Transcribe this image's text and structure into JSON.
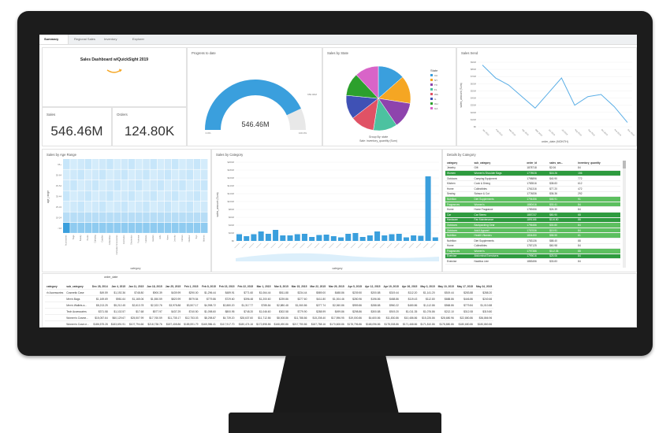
{
  "tabs": [
    {
      "label": "Summary",
      "active": true
    },
    {
      "label": "Regional Sales",
      "active": false
    },
    {
      "label": "Inventory",
      "active": false
    },
    {
      "label": "Explorer",
      "active": false
    }
  ],
  "header": {
    "title": "Sales Dashboard w/QuickSight 2019"
  },
  "kpis": {
    "sales": {
      "label": "Sales",
      "value": "546.46M"
    },
    "orders": {
      "label": "Orders",
      "value": "124.80K"
    }
  },
  "progress": {
    "title": "Progress to date",
    "value": "546.46M",
    "fraction": 0.86,
    "min_label": "0.0%",
    "max_label": "100.0%",
    "target_label": "650.00M",
    "color": "#3a9fdd"
  },
  "sales_by_state": {
    "title": "Sales by State",
    "legend_title": "State",
    "caption1": "Group By: state",
    "caption2": "Sale: inventory_quantity (Sum)",
    "legend": [
      {
        "label": "CA",
        "color": "#3a9fdd"
      },
      {
        "label": "NY",
        "color": "#f5a623"
      },
      {
        "label": "TX",
        "color": "#8e44ad"
      },
      {
        "label": "FL",
        "color": "#4cc2a0"
      },
      {
        "label": "WA",
        "color": "#e05265"
      },
      {
        "label": "IL",
        "color": "#3f51b5"
      },
      {
        "label": "OH",
        "color": "#2ca02c"
      },
      {
        "label": "GA",
        "color": "#d864c8"
      }
    ]
  },
  "sales_trend": {
    "title": "Sales trend",
    "xlabel": "order_date (MONTH)",
    "ylabel": "sales_amount (Sum)",
    "y_ticks": [
      "$90M",
      "$80M",
      "$70M",
      "$60M",
      "$50M",
      "$40M",
      "$30M",
      "$20M",
      "$10M",
      "$0"
    ],
    "x_ticks": [
      "Jan 2019",
      "Feb 2019",
      "Mar 2019",
      "Apr 2019",
      "May 2019",
      "Jun 2019",
      "Jul 2019",
      "Aug 2019",
      "Sep 2019",
      "Oct 2019",
      "Nov 2019",
      "Dec 2019"
    ]
  },
  "age_range": {
    "title": "Sales by Age Range",
    "ylabel": "age_range",
    "xlabel": "category",
    "rows": [
      "65+",
      "55-64",
      "45-54",
      "35-44",
      "25-34",
      "18-24",
      "<18"
    ],
    "cols": [
      "Accessories",
      "Bags",
      "Beauty",
      "Books",
      "Camping",
      "Candles",
      "Collectibles",
      "Computer Accessories",
      "Cosmetics",
      "Electronics",
      "Footwear",
      "Furniture",
      "Garden",
      "Gifts",
      "Home",
      "Jewelry",
      "Kitchen",
      "Outdoor",
      "Toys",
      "Women"
    ]
  },
  "sales_by_category": {
    "title": "Sales by Category",
    "xlabel": "category",
    "ylabel": "sales_amount (Sum)",
    "y_ticks": [
      "$200M",
      "$180M",
      "$160M",
      "$140M",
      "$120M",
      "$100M",
      "$80M",
      "$60M",
      "$40M",
      "$20M",
      "$0"
    ]
  },
  "details": {
    "title": "Details by Category",
    "headers": [
      "category",
      "sub_category",
      "order_id",
      "sales_am...",
      "inventory_quantity"
    ],
    "rows": [
      [
        "Jewelry",
        "Gift",
        "1878718",
        "$2.06",
        "84",
        "none"
      ],
      [
        "Women",
        "Women's Shoulder Bags",
        "1778928",
        "$18.26",
        "156",
        "dark"
      ],
      [
        "Outdoors",
        "Camping Equipment",
        "1798896",
        "$40.90",
        "772",
        "none"
      ],
      [
        "Kitchen",
        "Cook & Dining",
        "1783516",
        "$38.83",
        "612",
        "none"
      ],
      [
        "Home",
        "Collectibles",
        "1761316",
        "$77.20",
        "472",
        "none"
      ],
      [
        "Sewing",
        "Scissor & Cut",
        "1774836",
        "$36.36",
        "292",
        "none"
      ],
      [
        "Nutrition",
        "Diet Supplements",
        "1794456",
        "$68.91",
        "91",
        "mid"
      ],
      [
        "Fragrances",
        "Women's",
        "1880416",
        "$30.41",
        "84",
        "mid"
      ],
      [
        "Home",
        "Home Fragrance",
        "1789456",
        "$24.39",
        "84",
        "none"
      ],
      [
        "Car",
        "Car Stereo",
        "1887237",
        "$80.90",
        "68",
        "dark"
      ],
      [
        "Hardware",
        "Fan Maintenance",
        "1891166",
        "$116.80",
        "88",
        "dark"
      ],
      [
        "Outdoors",
        "Backpacking Gear",
        "1796486",
        "$30.80",
        "84",
        "mid"
      ],
      [
        "Outdoors",
        "Adult Apparel",
        "1787836",
        "$19.91",
        "84",
        "mid"
      ],
      [
        "Nutrition",
        "Health Vitamins",
        "1804450",
        "$58.55",
        "61",
        "mid"
      ],
      [
        "Nutrition",
        "Diet Supplements",
        "1783136",
        "$88.40",
        "88",
        "none"
      ],
      [
        "Home",
        "Collectibles",
        "1787125",
        "$60.98",
        "84",
        "none"
      ],
      [
        "Fragrances",
        "Women's",
        "1797386",
        "$112.36",
        "88",
        "mid"
      ],
      [
        "Exercise",
        "Abdominal Exercisers",
        "1799616",
        "$25.06",
        "84",
        "dark"
      ],
      [
        "Exercise",
        "Nautilus Line",
        "1883456",
        "$33.83",
        "84",
        "none"
      ]
    ]
  },
  "pivot": {
    "col_header": "order_date",
    "headers": [
      "category",
      "sub_category",
      "Dec 28, 2014",
      "Jan 4, 2015",
      "Jan 11, 2015",
      "Jan 18, 2015",
      "Jan 25, 2015",
      "Feb 1, 2015",
      "Feb 8, 2015",
      "Feb 15, 2015",
      "Feb 22, 2015",
      "Mar 1, 2015",
      "Mar 8, 2015",
      "Mar 15, 2015",
      "Mar 22, 2015",
      "Mar 29, 2015",
      "Apr 5, 2015",
      "Apr 12, 2015",
      "Apr 19, 2015",
      "Apr 26, 2015",
      "May 3, 2015",
      "May 10, 2015",
      "May 17, 2015",
      "May 24, 2015"
    ],
    "rows": [
      [
        "Accessories",
        "Cosmetic Case",
        "$49.59",
        "$1,192.36",
        "$748.80",
        "$900.39",
        "$439.99",
        "$290.00",
        "$1,296.44",
        "$489.91",
        "$771.60",
        "$1,064.44",
        "$511.88",
        "$234.44",
        "$589.00",
        "$488.86",
        "$239.50",
        "$200.88",
        "$319.44",
        "$112.20",
        "$1,141.20",
        "$519.44",
        "$283.88",
        "$288.20"
      ],
      [
        "",
        "Men's Bags",
        "$1,169.69",
        "$981.64",
        "$1,165.06",
        "$1,550.59",
        "$820.99",
        "$979.54",
        "$779.86",
        "$729.60",
        "$396.48",
        "$1,200.60",
        "$239.86",
        "$277.60",
        "$411.80",
        "$1,004.46",
        "$280.96",
        "$196.86",
        "$488.86",
        "$119.43",
        "$112.80",
        "$688.86",
        "$446.86",
        "$240.66"
      ],
      [
        "",
        "Men's Wallets a...",
        "$8,213.25",
        "$5,212.45",
        "$2,613.78",
        "$2,322.76",
        "$3,978.88",
        "$3,507.17",
        "$4,998.72",
        "$2,880.20",
        "$1,317.77",
        "$785.84",
        "$2,880.48",
        "$1,060.86",
        "$277.74",
        "$2,060.86",
        "$959.86",
        "$288.88",
        "$960.22",
        "$480.86",
        "$1,112.86",
        "$568.86",
        "$779.84",
        "$1,010.88"
      ],
      [
        "",
        "Tech Accessories",
        "$371.58",
        "$1,102.57",
        "$17.68",
        "$577.97",
        "$437.29",
        "$740.50",
        "$1,098.60",
        "$800.95",
        "$748.20",
        "$1,046.60",
        "$302.58",
        "$779.90",
        "$288.99",
        "$499.86",
        "$298.86",
        "$300.88",
        "$919.20",
        "$1,011.35",
        "$1,076.86",
        "$212.10",
        "$312.08",
        "$319.80"
      ],
      [
        "",
        "Women's Cosme...",
        "$15,057.64",
        "$60,129.67",
        "$25,507.99",
        "$17,760.59",
        "$11,735.17",
        "$12,753.03",
        "$8,298.87",
        "$4,739.20",
        "$28,637.60",
        "$11,712.86",
        "$8,008.86",
        "$11,788.86",
        "$15,208.40",
        "$17,596.95",
        "$19,000.86",
        "$4,600.86",
        "$11,830.86",
        "$10,486.86",
        "$15,226.86",
        "$28,680.96",
        "$22,880.86",
        "$36,866.96"
      ],
      [
        "",
        "Women's Cosm e...",
        "$186,575.28",
        "$183,691.91",
        "$107,794.66",
        "$218,738.76",
        "$187,408.86",
        "$185,591.79",
        "$165,986.41",
        "$117,917.70",
        "$180,474.16",
        "$172,898.86",
        "$168,490.86",
        "$217,790.86",
        "$187,788.16",
        "$170,608.86",
        "$178,796.86",
        "$168,096.86",
        "$178,008.86",
        "$171,468.86",
        "$171,810.86",
        "$178,880.86",
        "$180,680.86",
        "$180,860.86"
      ]
    ]
  }
}
